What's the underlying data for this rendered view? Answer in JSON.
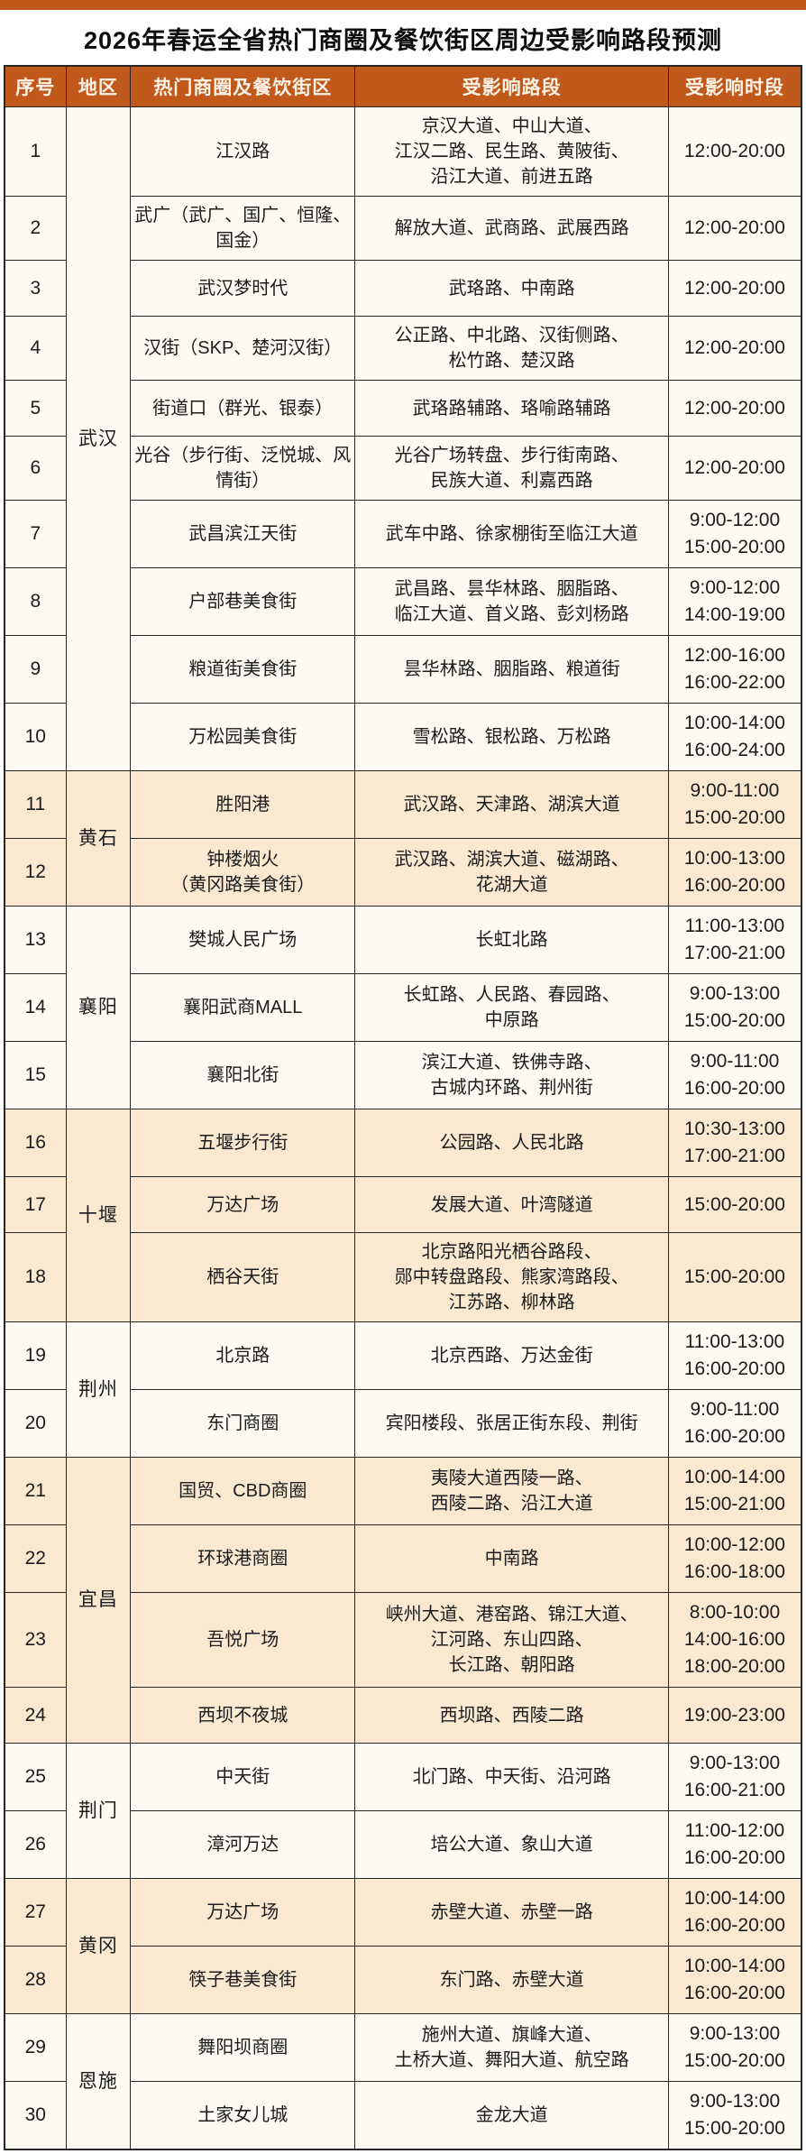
{
  "title": "2026年春运全省热门商圈及餐饮街区周边受影响路段预测",
  "accent_color": "#C2591C",
  "row_plain_color": "#FDFAF3",
  "row_shaded_color": "#FAE8D0",
  "table": {
    "columns": [
      "序号",
      "地区",
      "热门商圈及餐饮街区",
      "受影响路段",
      "受影响时段"
    ],
    "regions": [
      {
        "name": "武汉",
        "shaded": false,
        "rows": [
          {
            "no": "1",
            "area": "江汉路",
            "roads": "京汉大道、中山大道、\n江汉二路、民生路、黄陂街、\n沿江大道、前进五路",
            "times": [
              "12:00-20:00"
            ]
          },
          {
            "no": "2",
            "area": "武广（武广、国广、恒隆、国金）",
            "roads": "解放大道、武商路、武展西路",
            "times": [
              "12:00-20:00"
            ]
          },
          {
            "no": "3",
            "area": "武汉梦时代",
            "roads": "武珞路、中南路",
            "times": [
              "12:00-20:00"
            ]
          },
          {
            "no": "4",
            "area": "汉街（SKP、楚河汉街）",
            "roads": "公正路、中北路、汉街侧路、\n松竹路、楚汉路",
            "times": [
              "12:00-20:00"
            ]
          },
          {
            "no": "5",
            "area": "街道口（群光、银泰）",
            "roads": "武珞路辅路、珞喻路辅路",
            "times": [
              "12:00-20:00"
            ]
          },
          {
            "no": "6",
            "area": "光谷（步行街、泛悦城、风情街）",
            "roads": "光谷广场转盘、步行街南路、\n民族大道、利嘉西路",
            "times": [
              "12:00-20:00"
            ]
          },
          {
            "no": "7",
            "area": "武昌滨江天街",
            "roads": "武车中路、徐家棚街至临江大道",
            "times": [
              "9:00-12:00",
              "15:00-20:00"
            ]
          },
          {
            "no": "8",
            "area": "户部巷美食街",
            "roads": "武昌路、昙华林路、胭脂路、\n临江大道、首义路、彭刘杨路",
            "times": [
              "9:00-12:00",
              "14:00-19:00"
            ]
          },
          {
            "no": "9",
            "area": "粮道街美食街",
            "roads": "昙华林路、胭脂路、粮道街",
            "times": [
              "12:00-16:00",
              "16:00-22:00"
            ]
          },
          {
            "no": "10",
            "area": "万松园美食街",
            "roads": "雪松路、银松路、万松路",
            "times": [
              "10:00-14:00",
              "16:00-24:00"
            ]
          }
        ]
      },
      {
        "name": "黄石",
        "shaded": true,
        "rows": [
          {
            "no": "11",
            "area": "胜阳港",
            "roads": "武汉路、天津路、湖滨大道",
            "times": [
              "9:00-11:00",
              "15:00-20:00"
            ]
          },
          {
            "no": "12",
            "area": "钟楼烟火\n（黄冈路美食街）",
            "roads": "武汉路、湖滨大道、磁湖路、\n花湖大道",
            "times": [
              "10:00-13:00",
              "16:00-20:00"
            ]
          }
        ]
      },
      {
        "name": "襄阳",
        "shaded": false,
        "rows": [
          {
            "no": "13",
            "area": "樊城人民广场",
            "roads": "长虹北路",
            "times": [
              "11:00-13:00",
              "17:00-21:00"
            ]
          },
          {
            "no": "14",
            "area": "襄阳武商MALL",
            "roads": "长虹路、人民路、春园路、\n中原路",
            "times": [
              "9:00-13:00",
              "15:00-20:00"
            ]
          },
          {
            "no": "15",
            "area": "襄阳北街",
            "roads": "滨江大道、铁佛寺路、\n古城内环路、荆州街",
            "times": [
              "9:00-11:00",
              "16:00-20:00"
            ]
          }
        ]
      },
      {
        "name": "十堰",
        "shaded": true,
        "rows": [
          {
            "no": "16",
            "area": "五堰步行街",
            "roads": "公园路、人民北路",
            "times": [
              "10:30-13:00",
              "17:00-21:00"
            ]
          },
          {
            "no": "17",
            "area": "万达广场",
            "roads": "发展大道、叶湾隧道",
            "times": [
              "15:00-20:00"
            ]
          },
          {
            "no": "18",
            "area": "栖谷天街",
            "roads": "北京路阳光栖谷路段、\n郧中转盘路段、熊家湾路段、\n江苏路、柳林路",
            "times": [
              "15:00-20:00"
            ]
          }
        ]
      },
      {
        "name": "荆州",
        "shaded": false,
        "rows": [
          {
            "no": "19",
            "area": "北京路",
            "roads": "北京西路、万达金街",
            "times": [
              "11:00-13:00",
              "16:00-20:00"
            ]
          },
          {
            "no": "20",
            "area": "东门商圈",
            "roads": "宾阳楼段、张居正街东段、荆街",
            "times": [
              "9:00-11:00",
              "16:00-20:00"
            ]
          }
        ]
      },
      {
        "name": "宜昌",
        "shaded": true,
        "rows": [
          {
            "no": "21",
            "area": "国贸、CBD商圈",
            "roads": "夷陵大道西陵一路、\n西陵二路、沿江大道",
            "times": [
              "10:00-14:00",
              "15:00-21:00"
            ]
          },
          {
            "no": "22",
            "area": "环球港商圈",
            "roads": "中南路",
            "times": [
              "10:00-12:00",
              "16:00-18:00"
            ]
          },
          {
            "no": "23",
            "area": "吾悦广场",
            "roads": "峡州大道、港窑路、锦江大道、\n江河路、东山四路、\n长江路、朝阳路",
            "times": [
              "8:00-10:00",
              "14:00-16:00",
              "18:00-20:00"
            ]
          },
          {
            "no": "24",
            "area": "西坝不夜城",
            "roads": "西坝路、西陵二路",
            "times": [
              "19:00-23:00"
            ]
          }
        ]
      },
      {
        "name": "荆门",
        "shaded": false,
        "rows": [
          {
            "no": "25",
            "area": "中天街",
            "roads": "北门路、中天街、沿河路",
            "times": [
              "9:00-13:00",
              "16:00-21:00"
            ]
          },
          {
            "no": "26",
            "area": "漳河万达",
            "roads": "培公大道、象山大道",
            "times": [
              "11:00-12:00",
              "16:00-20:00"
            ]
          }
        ]
      },
      {
        "name": "黄冈",
        "shaded": true,
        "rows": [
          {
            "no": "27",
            "area": "万达广场",
            "roads": "赤壁大道、赤壁一路",
            "times": [
              "10:00-14:00",
              "16:00-20:00"
            ]
          },
          {
            "no": "28",
            "area": "筷子巷美食街",
            "roads": "东门路、赤壁大道",
            "times": [
              "10:00-14:00",
              "16:00-20:00"
            ]
          }
        ]
      },
      {
        "name": "恩施",
        "shaded": false,
        "rows": [
          {
            "no": "29",
            "area": "舞阳坝商圈",
            "roads": "施州大道、旗峰大道、\n土桥大道、舞阳大道、航空路",
            "times": [
              "9:00-13:00",
              "15:00-20:00"
            ]
          },
          {
            "no": "30",
            "area": "土家女儿城",
            "roads": "金龙大道",
            "times": [
              "9:00-13:00",
              "15:00-20:00"
            ]
          }
        ]
      }
    ]
  }
}
